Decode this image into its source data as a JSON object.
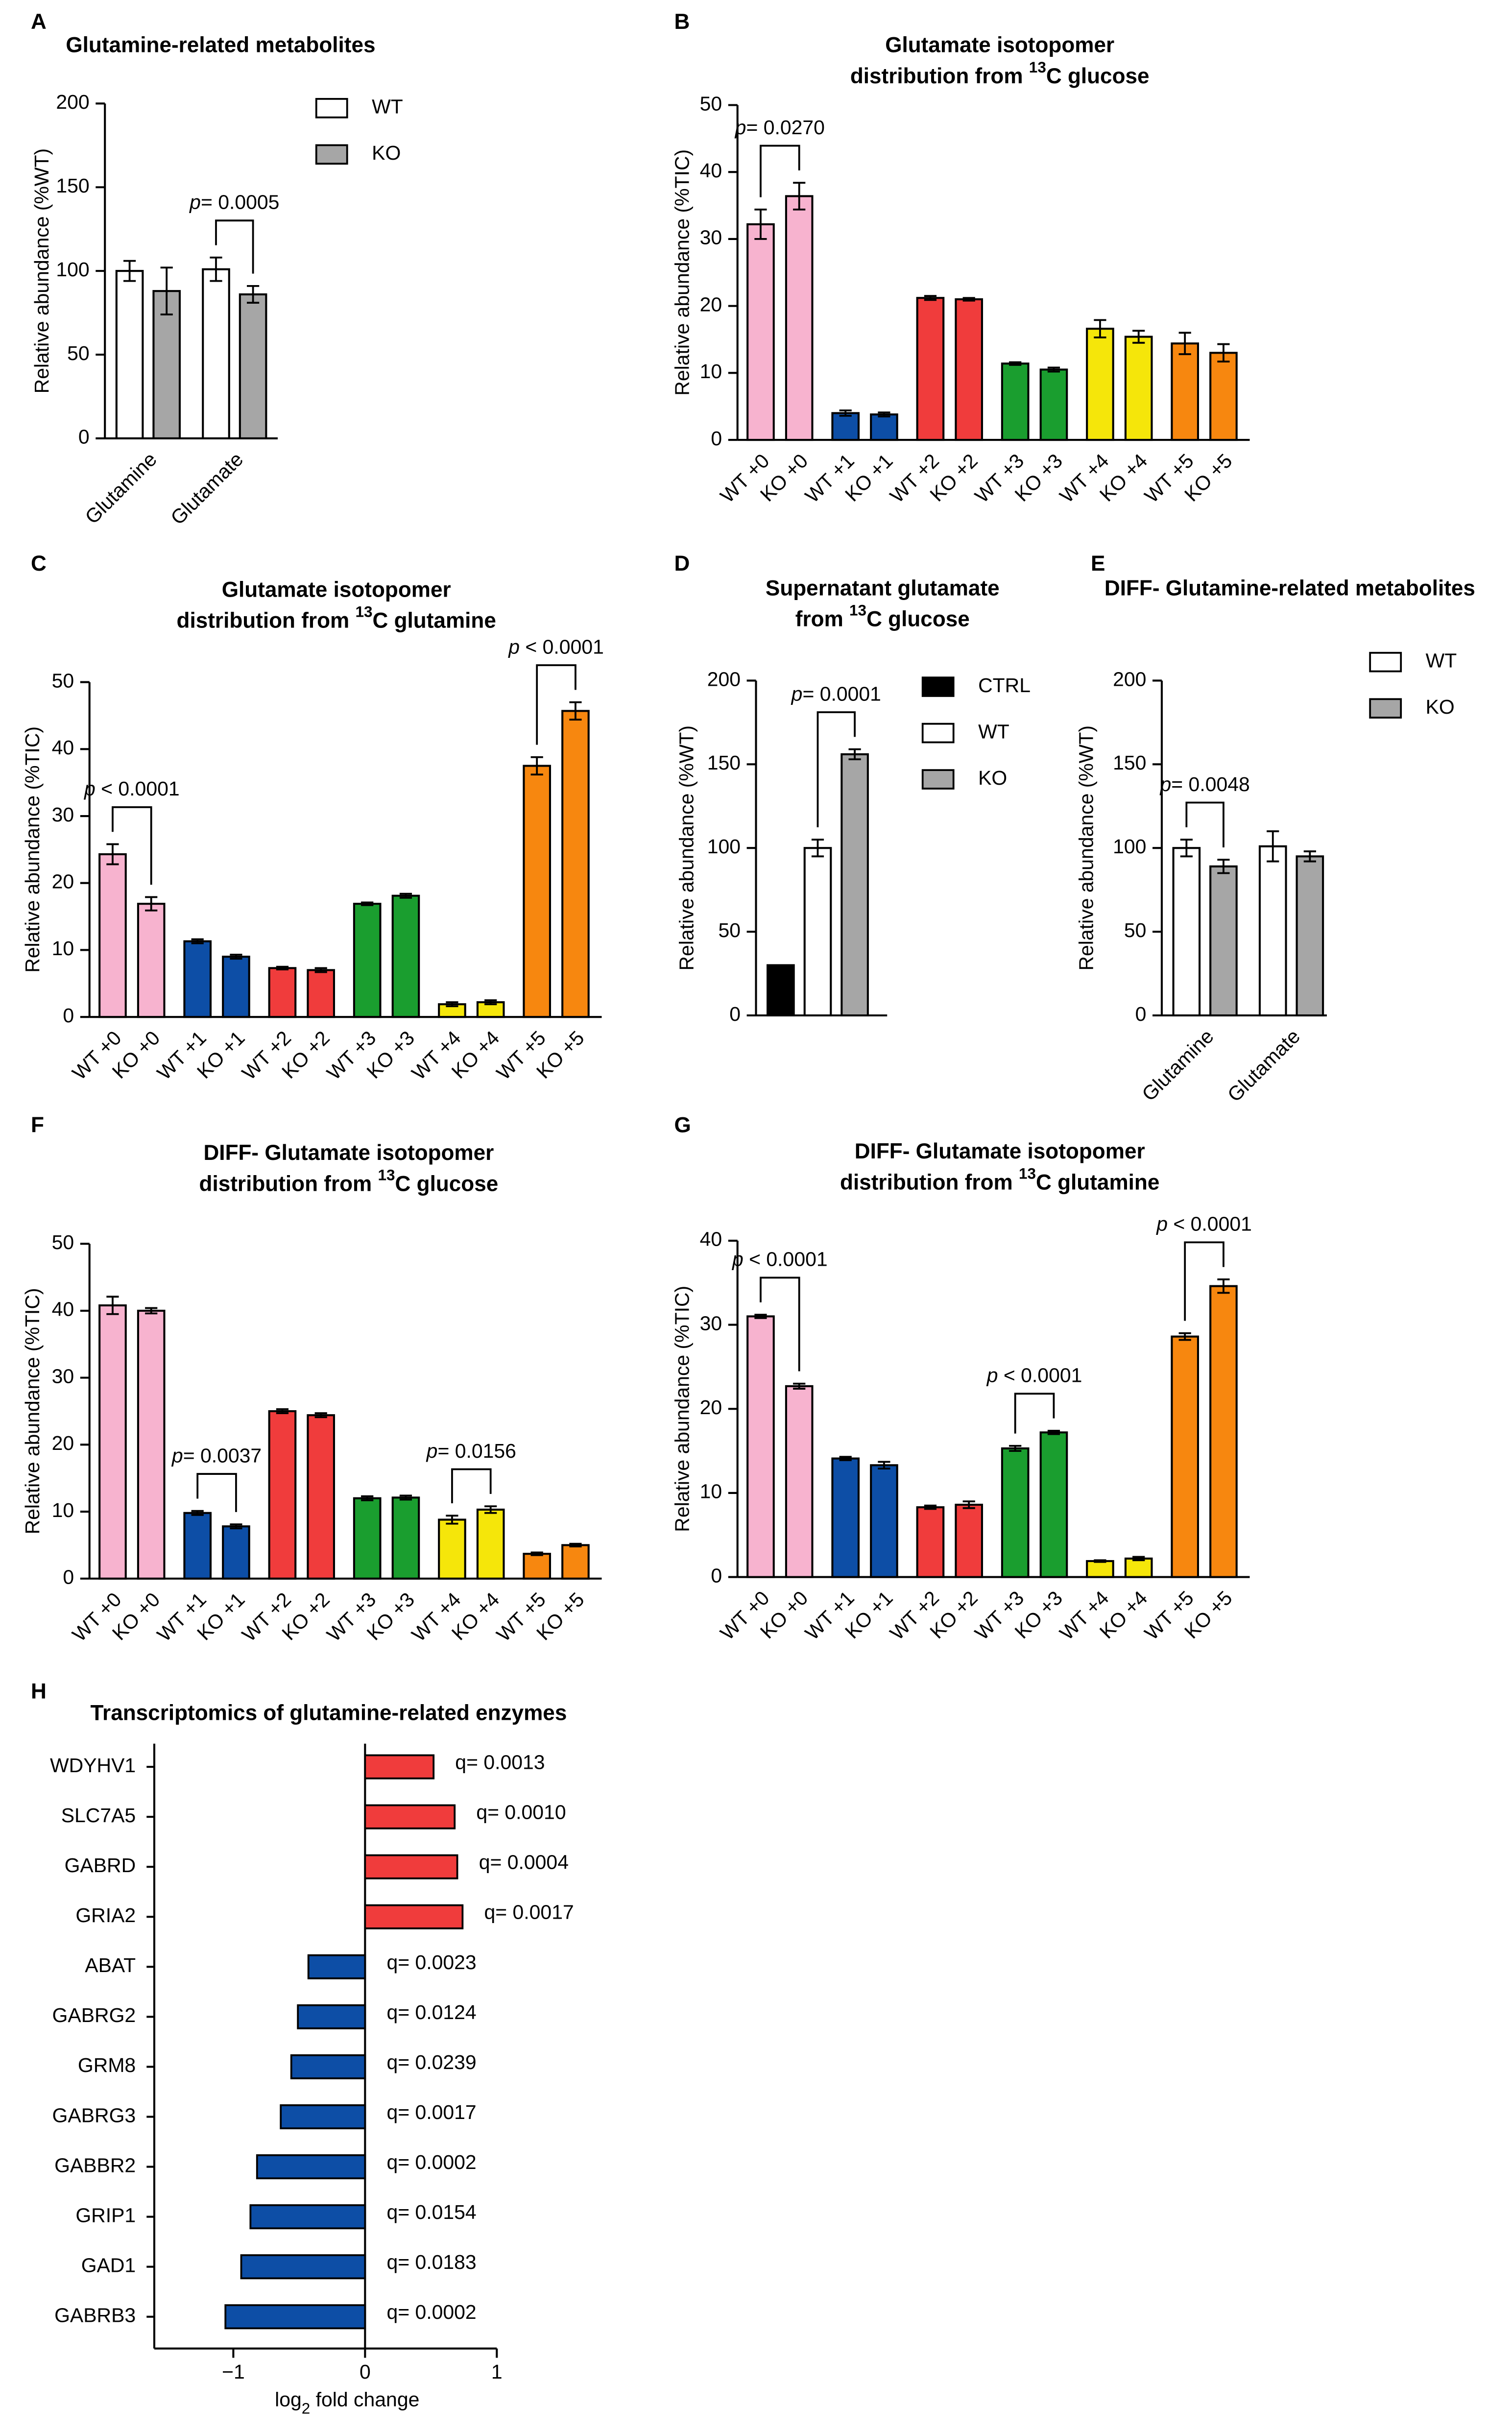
{
  "chart_data": [
    {
      "type": "bar",
      "panel": "A",
      "title": [
        "Glutamine-related metabolites"
      ],
      "y_label": "Relative abundance (%WT)",
      "categories": [
        "Glutamine",
        "Glutamate"
      ],
      "series": [
        {
          "name": "WT",
          "color": "#ffffff",
          "values": [
            100,
            101
          ],
          "errors": [
            6,
            7
          ]
        },
        {
          "name": "KO",
          "color": "#a6a6a6",
          "values": [
            88,
            86
          ],
          "errors": [
            14,
            5
          ]
        }
      ],
      "ylim": [
        0,
        200
      ],
      "yticks": [
        0,
        50,
        100,
        150,
        200
      ],
      "annotations": [
        {
          "text": [
            "p",
            "= 0.0005"
          ],
          "between": [
            [
              1,
              0
            ],
            [
              1,
              1
            ]
          ]
        }
      ]
    },
    {
      "type": "bar",
      "panel": "B",
      "title": [
        "Glutamate isotopomer",
        [
          "distribution from ",
          "13",
          "C glucose"
        ]
      ],
      "y_label": "Relative abundance (%TIC)",
      "categories": [
        "WT +0",
        "KO +0",
        "WT +1",
        "KO +1",
        "WT +2",
        "KO +2",
        "WT +3",
        "KO +3",
        "WT +4",
        "KO +4",
        "WT +5",
        "KO +5"
      ],
      "values": [
        32.2,
        36.4,
        4,
        3.8,
        21.2,
        21,
        11.4,
        10.5,
        16.6,
        15.4,
        14.4,
        13
      ],
      "errors": [
        2.2,
        2,
        0.4,
        0.3,
        0.3,
        0.2,
        0.2,
        0.3,
        1.3,
        0.9,
        1.6,
        1.3
      ],
      "colors": [
        "#f7b3cf",
        "#f7b3cf",
        "#0d4ea6",
        "#0d4ea6",
        "#f03c3c",
        "#f03c3c",
        "#1a9e2f",
        "#1a9e2f",
        "#f5e60a",
        "#f5e60a",
        "#f7870f",
        "#f7870f"
      ],
      "ylim": [
        0,
        50
      ],
      "yticks": [
        0,
        10,
        20,
        30,
        40,
        50
      ],
      "annotations": [
        {
          "text": [
            "p",
            "= 0.0270"
          ],
          "between": [
            0,
            1
          ]
        }
      ]
    },
    {
      "type": "bar",
      "panel": "C",
      "title": [
        "Glutamate isotopomer",
        [
          "distribution from ",
          "13",
          "C glutamine"
        ]
      ],
      "y_label": "Relative abundance (%TIC)",
      "categories": [
        "WT +0",
        "KO +0",
        "WT +1",
        "KO +1",
        "WT +2",
        "KO +2",
        "WT +3",
        "KO +3",
        "WT +4",
        "KO +4",
        "WT +5",
        "KO +5"
      ],
      "values": [
        24.3,
        16.9,
        11.3,
        9,
        7.3,
        7,
        16.9,
        18.1,
        1.9,
        2.2,
        37.5,
        45.7
      ],
      "errors": [
        1.5,
        1,
        0.3,
        0.3,
        0.2,
        0.3,
        0.2,
        0.3,
        0.3,
        0.3,
        1.3,
        1.3
      ],
      "colors": [
        "#f7b3cf",
        "#f7b3cf",
        "#0d4ea6",
        "#0d4ea6",
        "#f03c3c",
        "#f03c3c",
        "#1a9e2f",
        "#1a9e2f",
        "#f5e60a",
        "#f5e60a",
        "#f7870f",
        "#f7870f"
      ],
      "ylim": [
        0,
        50
      ],
      "yticks": [
        0,
        10,
        20,
        30,
        40,
        50
      ],
      "annotations": [
        {
          "text": [
            "p",
            " < 0.0001"
          ],
          "between": [
            0,
            1
          ]
        },
        {
          "text": [
            "p",
            " < 0.0001"
          ],
          "between": [
            10,
            11
          ]
        }
      ]
    },
    {
      "type": "bar",
      "panel": "D",
      "title": [
        "Supernatant glutamate",
        [
          "from ",
          "13",
          "C glucose"
        ]
      ],
      "y_label": "Relative abundance (%WT)",
      "categories": [
        null
      ],
      "series": [
        {
          "name": "CTRL",
          "color": "#000000",
          "values": [
            30
          ],
          "errors": [
            null
          ]
        },
        {
          "name": "WT",
          "color": "#ffffff",
          "values": [
            100
          ],
          "errors": [
            5
          ]
        },
        {
          "name": "KO",
          "color": "#a6a6a6",
          "values": [
            156
          ],
          "errors": [
            3
          ]
        }
      ],
      "ylim": [
        0,
        200
      ],
      "yticks": [
        0,
        50,
        100,
        150,
        200
      ],
      "annotations": [
        {
          "text": [
            "p",
            "= 0.0001"
          ],
          "between": [
            [
              0,
              1
            ],
            [
              0,
              2
            ]
          ]
        }
      ]
    },
    {
      "type": "bar",
      "panel": "E",
      "title": [
        "DIFF- Glutamine-related metabolites"
      ],
      "y_label": "Relative abundance (%WT)",
      "categories": [
        "Glutamine",
        "Glutamate"
      ],
      "series": [
        {
          "name": "WT",
          "color": "#ffffff",
          "values": [
            100,
            101
          ],
          "errors": [
            5,
            9
          ]
        },
        {
          "name": "KO",
          "color": "#a6a6a6",
          "values": [
            89,
            95
          ],
          "errors": [
            4,
            3
          ]
        }
      ],
      "ylim": [
        0,
        200
      ],
      "yticks": [
        0,
        50,
        100,
        150,
        200
      ],
      "annotations": [
        {
          "text": [
            "p",
            "= 0.0048"
          ],
          "between": [
            [
              0,
              0
            ],
            [
              0,
              1
            ]
          ]
        }
      ]
    },
    {
      "type": "bar",
      "panel": "F",
      "title": [
        "DIFF- Glutamate isotopomer",
        [
          "distribution from ",
          "13",
          "C glucose"
        ]
      ],
      "y_label": "Relative abundance (%TIC)",
      "categories": [
        "WT +0",
        "KO +0",
        "WT +1",
        "KO +1",
        "WT +2",
        "KO +2",
        "WT +3",
        "KO +3",
        "WT +4",
        "KO +4",
        "WT +5",
        "KO +5"
      ],
      "values": [
        40.8,
        40,
        9.8,
        7.8,
        25,
        24.4,
        12,
        12.1,
        8.8,
        10.3,
        3.7,
        5
      ],
      "errors": [
        1.3,
        0.4,
        0.3,
        0.3,
        0.3,
        0.3,
        0.3,
        0.3,
        0.6,
        0.5,
        0.2,
        0.2
      ],
      "colors": [
        "#f7b3cf",
        "#f7b3cf",
        "#0d4ea6",
        "#0d4ea6",
        "#f03c3c",
        "#f03c3c",
        "#1a9e2f",
        "#1a9e2f",
        "#f5e60a",
        "#f5e60a",
        "#f7870f",
        "#f7870f"
      ],
      "ylim": [
        0,
        50
      ],
      "yticks": [
        0,
        10,
        20,
        30,
        40,
        50
      ],
      "annotations": [
        {
          "text": [
            "p",
            "= 0.0037"
          ],
          "between": [
            2,
            3
          ]
        },
        {
          "text": [
            "p",
            "= 0.0156"
          ],
          "between": [
            8,
            9
          ]
        }
      ]
    },
    {
      "type": "bar",
      "panel": "G",
      "title": [
        "DIFF- Glutamate isotopomer",
        [
          "distribution from ",
          "13",
          "C glutamine"
        ]
      ],
      "y_label": "Relative abundance (%TIC)",
      "categories": [
        "WT +0",
        "KO +0",
        "WT +1",
        "KO +1",
        "WT +2",
        "KO +2",
        "WT +3",
        "KO +3",
        "WT +4",
        "KO +4",
        "WT +5",
        "KO +5"
      ],
      "values": [
        31,
        22.7,
        14.1,
        13.3,
        8.3,
        8.6,
        15.3,
        17.2,
        1.9,
        2.2,
        28.6,
        34.6
      ],
      "errors": [
        0.2,
        0.3,
        0.2,
        0.4,
        0.2,
        0.4,
        0.3,
        0.2,
        0.1,
        0.2,
        0.4,
        0.8
      ],
      "colors": [
        "#f7b3cf",
        "#f7b3cf",
        "#0d4ea6",
        "#0d4ea6",
        "#f03c3c",
        "#f03c3c",
        "#1a9e2f",
        "#1a9e2f",
        "#f5e60a",
        "#f5e60a",
        "#f7870f",
        "#f7870f"
      ],
      "ylim": [
        0,
        40
      ],
      "yticks": [
        0,
        10,
        20,
        30,
        40
      ],
      "annotations": [
        {
          "text": [
            "p",
            " < 0.0001"
          ],
          "between": [
            0,
            1
          ]
        },
        {
          "text": [
            "p",
            " < 0.0001"
          ],
          "between": [
            6,
            7
          ]
        },
        {
          "text": [
            "p",
            " < 0.0001"
          ],
          "between": [
            10,
            11
          ]
        }
      ]
    },
    {
      "type": "barh",
      "panel": "H",
      "title": [
        "Transcriptomics of glutamine-related enzymes"
      ],
      "x_label": [
        "log",
        "2",
        " fold change"
      ],
      "categories": [
        "WDYHV1",
        "SLC7A5",
        "GABRD",
        "GRIA2",
        "ABAT",
        "GABRG2",
        "GRM8",
        "GABRG3",
        "GABBR2",
        "GRIP1",
        "GAD1",
        "GABRB3"
      ],
      "values": [
        0.52,
        0.68,
        0.7,
        0.74,
        -0.43,
        -0.51,
        -0.56,
        -0.64,
        -0.82,
        -0.87,
        -0.94,
        -1.06
      ],
      "colors": [
        "#f03c3c",
        "#f03c3c",
        "#f03c3c",
        "#f03c3c",
        "#0d4ea6",
        "#0d4ea6",
        "#0d4ea6",
        "#0d4ea6",
        "#0d4ea6",
        "#0d4ea6",
        "#0d4ea6",
        "#0d4ea6"
      ],
      "annotations": [
        "q= 0.0013",
        "q= 0.0010",
        "q= 0.0004",
        "q= 0.0017",
        "q= 0.0023",
        "q= 0.0124",
        "q= 0.0239",
        "q= 0.0017",
        "q= 0.0002",
        "q= 0.0154",
        "q= 0.0183",
        "q= 0.0002"
      ],
      "xlim": [
        -1.6,
        1
      ],
      "xticks": [
        {
          "value": -1,
          "label": "−1"
        },
        0,
        1
      ]
    }
  ]
}
